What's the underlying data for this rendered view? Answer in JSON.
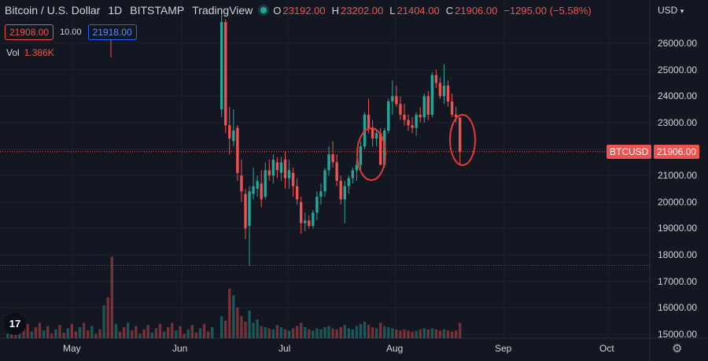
{
  "header": {
    "symbol": "Bitcoin / U.S. Dollar",
    "interval": "1D",
    "exchange": "BITSTAMP",
    "source": "TradingView",
    "ohlc": {
      "o_label": "O",
      "o": "23192.00",
      "h_label": "H",
      "h": "23202.00",
      "l_label": "L",
      "l": "21404.00",
      "c_label": "C",
      "c": "21906.00",
      "change": "−1295.00 (−5.58%)"
    },
    "sell_price": "21908.00",
    "spread": "10.00",
    "buy_price": "21918.00",
    "volume_label": "Vol",
    "volume_value": "1.386K"
  },
  "axis": {
    "currency": "USD",
    "y_ticks": [
      "26000.00",
      "25000.00",
      "24000.00",
      "23000.00",
      "22000.00",
      "21000.00",
      "20000.00",
      "19000.00",
      "18000.00",
      "17000.00",
      "16000.00",
      "15000.00"
    ],
    "x_ticks": [
      "May",
      "Jun",
      "Jul",
      "Aug",
      "Sep",
      "Oct"
    ],
    "price_tag_symbol": "BTCUSD",
    "price_tag_value": "21906.00"
  },
  "colors": {
    "up": "#26a69a",
    "down": "#ef5350",
    "background": "#131722",
    "circle": "#e53935"
  },
  "icons": {
    "logo": "tradingview-logo-icon",
    "settings": "gear-icon",
    "status": "market-status-dot-icon"
  },
  "chart_data": {
    "type": "candlestick",
    "ylim": [
      15000,
      27000
    ],
    "current_price": 21906,
    "reference_price_line": 17600,
    "candles": [
      {
        "o": 23500,
        "h": 27200,
        "l": 23200,
        "c": 26800
      },
      {
        "o": 26800,
        "h": 26900,
        "l": 22600,
        "c": 22900
      },
      {
        "o": 22900,
        "h": 23600,
        "l": 21800,
        "c": 22400
      },
      {
        "o": 22300,
        "h": 23500,
        "l": 22100,
        "c": 22700
      },
      {
        "o": 22800,
        "h": 22900,
        "l": 20800,
        "c": 21100
      },
      {
        "o": 21000,
        "h": 21600,
        "l": 20000,
        "c": 20400
      },
      {
        "o": 20300,
        "h": 20500,
        "l": 18600,
        "c": 19000
      },
      {
        "o": 19100,
        "h": 20600,
        "l": 17600,
        "c": 20400
      },
      {
        "o": 20300,
        "h": 21300,
        "l": 20100,
        "c": 20600
      },
      {
        "o": 20500,
        "h": 21000,
        "l": 20200,
        "c": 20800
      },
      {
        "o": 20700,
        "h": 21200,
        "l": 19800,
        "c": 20100
      },
      {
        "o": 20200,
        "h": 21500,
        "l": 20100,
        "c": 21200
      },
      {
        "o": 21200,
        "h": 21600,
        "l": 20800,
        "c": 21000
      },
      {
        "o": 21000,
        "h": 21800,
        "l": 20700,
        "c": 21600
      },
      {
        "o": 21500,
        "h": 21700,
        "l": 20900,
        "c": 21200
      },
      {
        "o": 21100,
        "h": 21700,
        "l": 20800,
        "c": 21500
      },
      {
        "o": 21600,
        "h": 21900,
        "l": 20500,
        "c": 20900
      },
      {
        "o": 20900,
        "h": 21600,
        "l": 20500,
        "c": 21200
      },
      {
        "o": 21100,
        "h": 21300,
        "l": 20200,
        "c": 20600
      },
      {
        "o": 20600,
        "h": 20900,
        "l": 19900,
        "c": 20100
      },
      {
        "o": 20000,
        "h": 20200,
        "l": 18800,
        "c": 19200
      },
      {
        "o": 19200,
        "h": 19600,
        "l": 18900,
        "c": 19300
      },
      {
        "o": 19300,
        "h": 19500,
        "l": 19000,
        "c": 19100
      },
      {
        "o": 19100,
        "h": 19700,
        "l": 19000,
        "c": 19600
      },
      {
        "o": 19600,
        "h": 20400,
        "l": 19300,
        "c": 20200
      },
      {
        "o": 20200,
        "h": 20700,
        "l": 19900,
        "c": 20400
      },
      {
        "o": 20400,
        "h": 21300,
        "l": 20200,
        "c": 21200
      },
      {
        "o": 21200,
        "h": 22100,
        "l": 21000,
        "c": 21800
      },
      {
        "o": 21800,
        "h": 22300,
        "l": 21300,
        "c": 21500
      },
      {
        "o": 21500,
        "h": 21800,
        "l": 20600,
        "c": 20800
      },
      {
        "o": 20800,
        "h": 21000,
        "l": 19900,
        "c": 20100
      },
      {
        "o": 20100,
        "h": 20800,
        "l": 19200,
        "c": 20600
      },
      {
        "o": 20600,
        "h": 21000,
        "l": 20300,
        "c": 20900
      },
      {
        "o": 20900,
        "h": 21300,
        "l": 20700,
        "c": 21200
      },
      {
        "o": 21200,
        "h": 21600,
        "l": 20800,
        "c": 21400
      },
      {
        "o": 21400,
        "h": 22300,
        "l": 21200,
        "c": 22100
      },
      {
        "o": 22100,
        "h": 23400,
        "l": 22000,
        "c": 23300
      },
      {
        "o": 23300,
        "h": 23900,
        "l": 22600,
        "c": 22800
      },
      {
        "o": 22800,
        "h": 23100,
        "l": 22100,
        "c": 22400
      },
      {
        "o": 22400,
        "h": 22700,
        "l": 22100,
        "c": 22600
      },
      {
        "o": 22600,
        "h": 22800,
        "l": 21400,
        "c": 21400
      },
      {
        "o": 21400,
        "h": 22800,
        "l": 21300,
        "c": 22700
      },
      {
        "o": 22700,
        "h": 23900,
        "l": 22600,
        "c": 23800
      },
      {
        "o": 23800,
        "h": 24600,
        "l": 23300,
        "c": 24000
      },
      {
        "o": 24000,
        "h": 24400,
        "l": 23600,
        "c": 23700
      },
      {
        "o": 23700,
        "h": 24000,
        "l": 23100,
        "c": 23300
      },
      {
        "o": 23300,
        "h": 23700,
        "l": 22900,
        "c": 23100
      },
      {
        "o": 23100,
        "h": 23300,
        "l": 22700,
        "c": 22900
      },
      {
        "o": 22900,
        "h": 23200,
        "l": 22600,
        "c": 22800
      },
      {
        "o": 22800,
        "h": 23400,
        "l": 22500,
        "c": 23300
      },
      {
        "o": 23300,
        "h": 23600,
        "l": 23000,
        "c": 23200
      },
      {
        "o": 23200,
        "h": 24100,
        "l": 23000,
        "c": 24000
      },
      {
        "o": 24000,
        "h": 24200,
        "l": 23100,
        "c": 23300
      },
      {
        "o": 23300,
        "h": 24900,
        "l": 23200,
        "c": 24800
      },
      {
        "o": 24800,
        "h": 25000,
        "l": 24300,
        "c": 24500
      },
      {
        "o": 24500,
        "h": 24700,
        "l": 23900,
        "c": 24000
      },
      {
        "o": 24000,
        "h": 25200,
        "l": 23700,
        "c": 24400
      },
      {
        "o": 24400,
        "h": 24600,
        "l": 23600,
        "c": 23800
      },
      {
        "o": 23800,
        "h": 24100,
        "l": 23200,
        "c": 23300
      },
      {
        "o": 23300,
        "h": 23600,
        "l": 23000,
        "c": 23200
      },
      {
        "o": 23192,
        "h": 23202,
        "l": 21404,
        "c": 21906
      }
    ],
    "volumes_k": [
      2.0,
      1.6,
      4.5,
      3.9,
      2.8,
      2.0,
      1.5,
      2.5,
      1.4,
      1.7,
      1.1,
      1.0,
      0.9,
      0.8,
      1.2,
      1.0,
      0.8,
      0.7,
      0.9,
      1.1,
      1.4,
      1.0,
      0.8,
      0.7,
      0.9,
      0.8,
      1.0,
      1.1,
      0.9,
      0.8,
      1.0,
      1.2,
      0.9,
      0.8,
      1.1,
      1.3,
      1.5,
      1.2,
      1.0,
      0.9,
      1.4,
      1.1,
      1.0,
      0.9,
      0.8,
      0.7,
      0.8,
      0.7,
      0.6,
      0.7,
      0.8,
      0.9,
      0.8,
      0.9,
      0.8,
      0.7,
      0.8,
      0.7,
      0.6,
      0.7,
      1.386
    ]
  }
}
